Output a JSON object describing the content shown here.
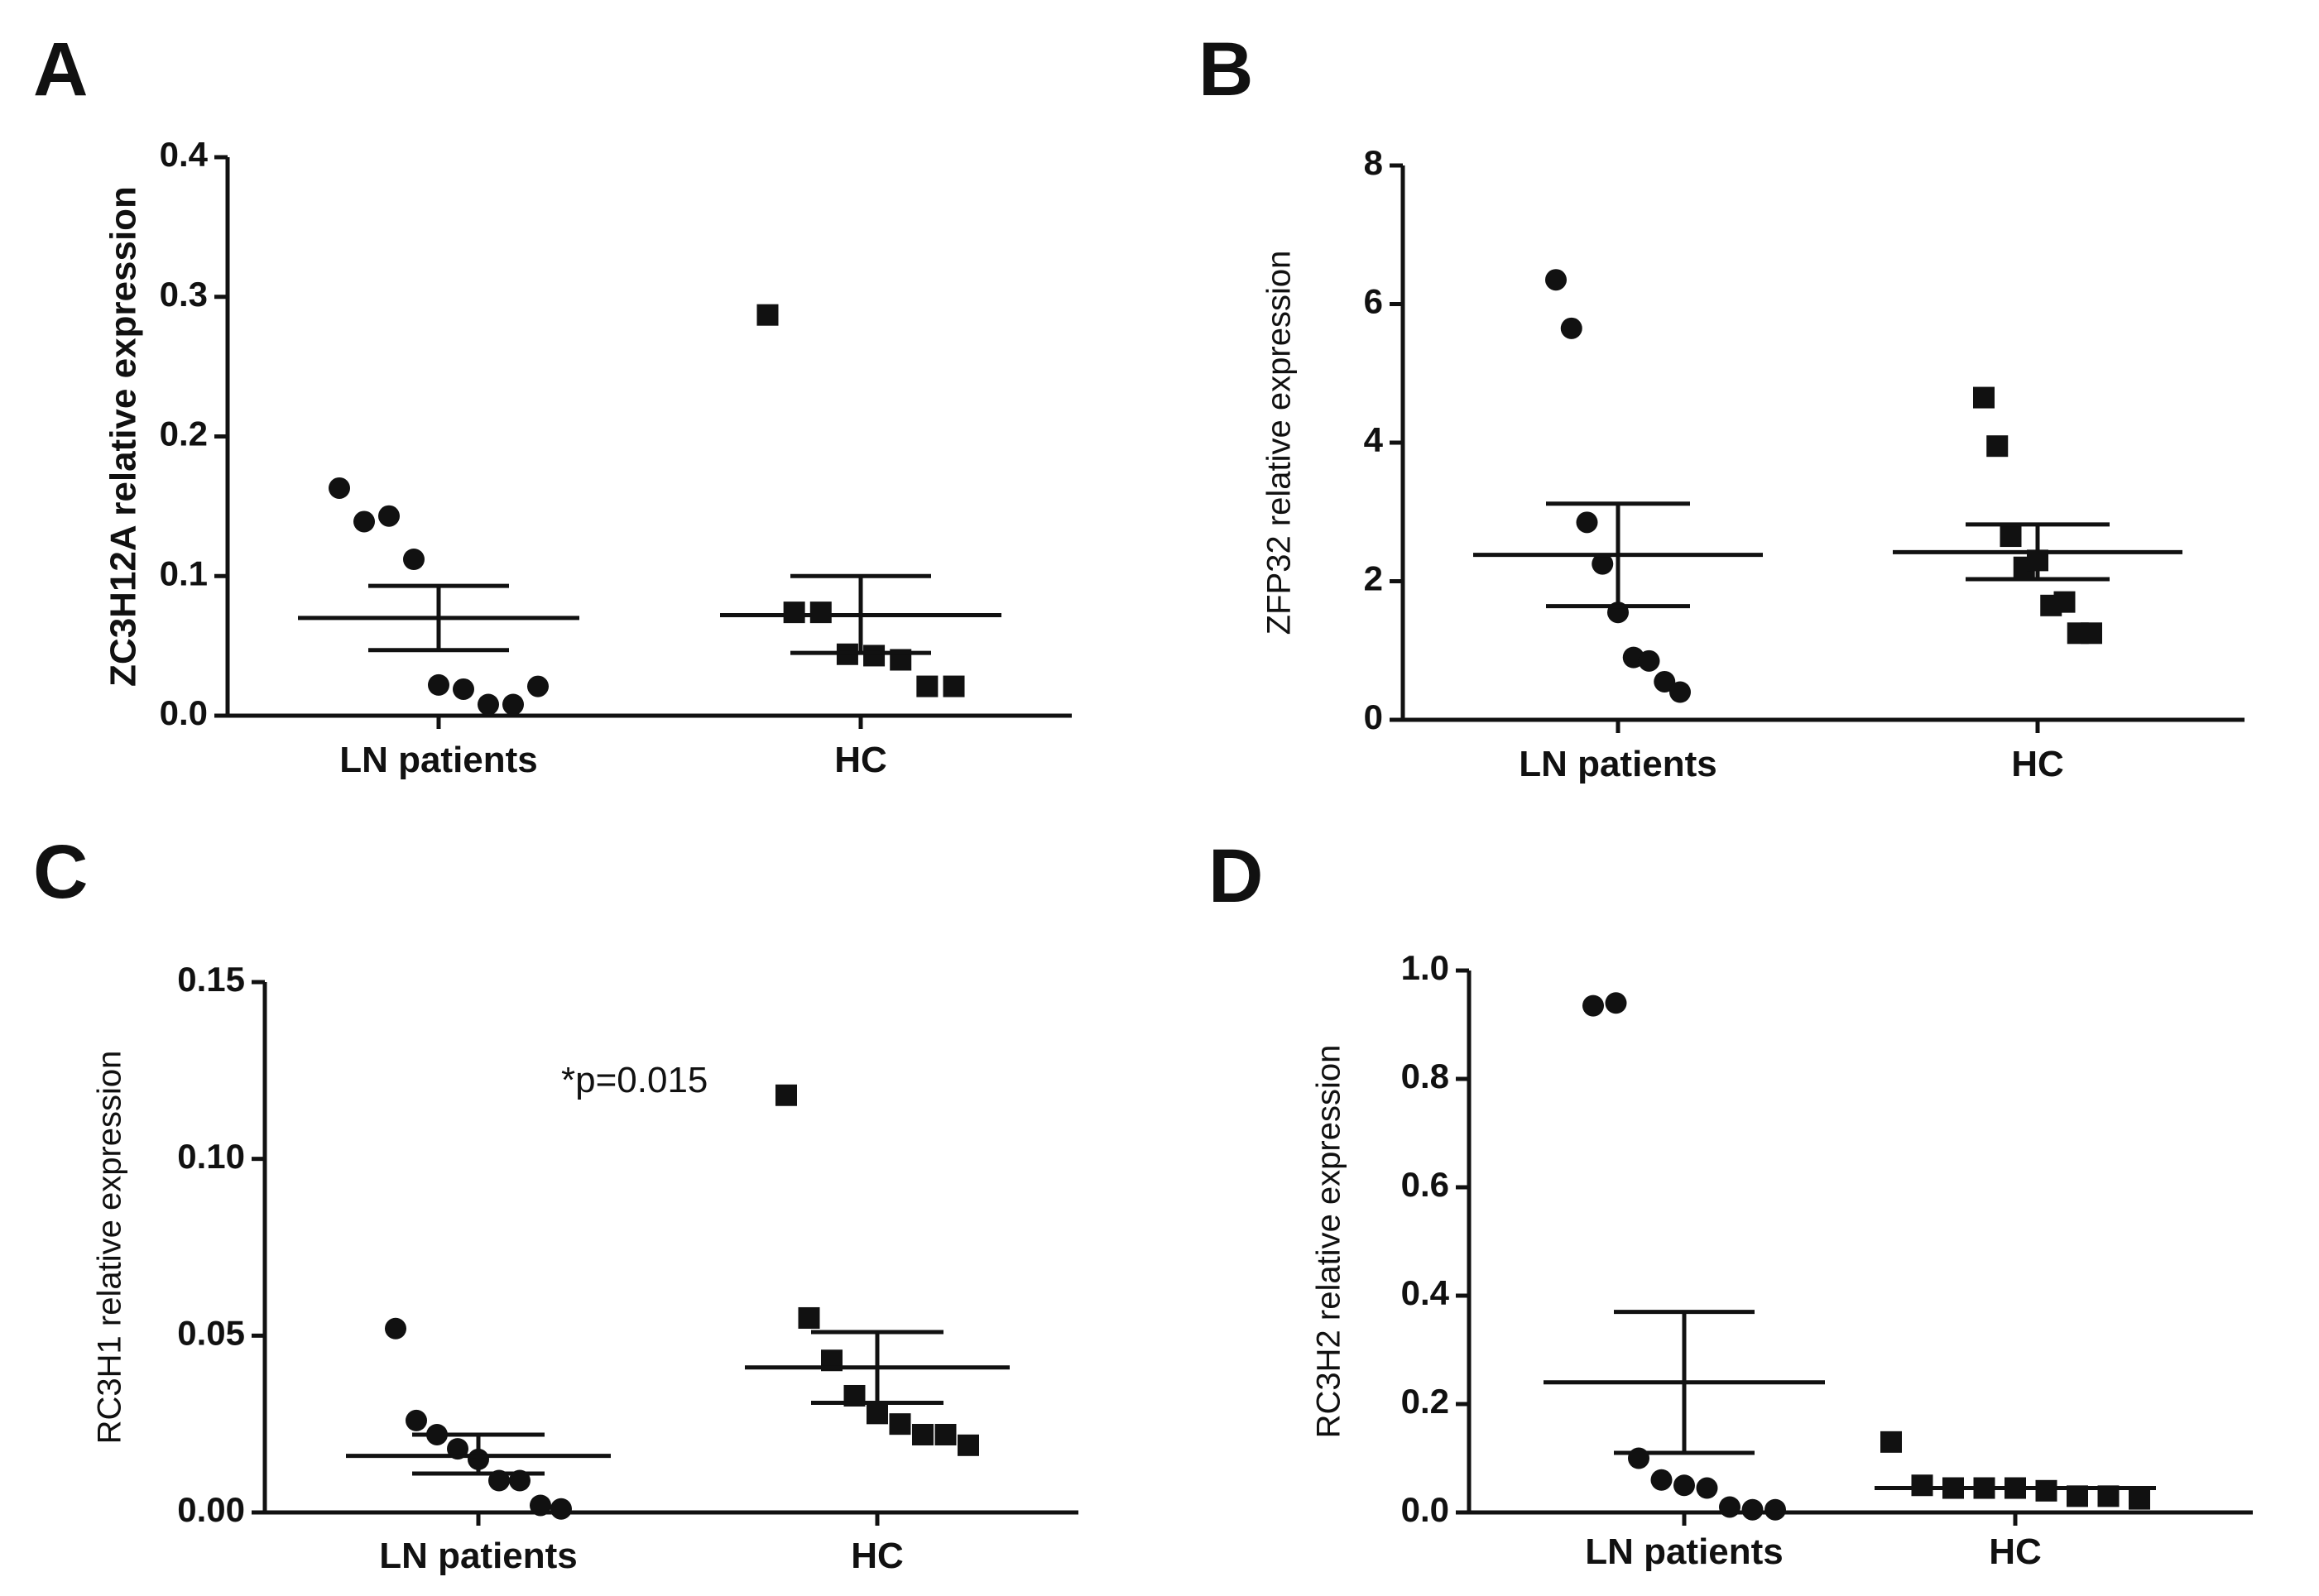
{
  "figure": {
    "background": "#ffffff",
    "ink": "#111111"
  },
  "chart_data": [
    {
      "panel": "A",
      "type": "scatter",
      "ylabel": "ZC3H12A relative expression",
      "ylim": [
        0,
        0.4
      ],
      "yticks": [
        0.0,
        0.1,
        0.2,
        0.3,
        0.4
      ],
      "ytick_labels": [
        "0.0",
        "0.1",
        "0.2",
        "0.3",
        "0.4"
      ],
      "categories": [
        "LN patients",
        "HC"
      ],
      "annotation": "",
      "series": [
        {
          "category": "LN patients",
          "marker": "circle",
          "points": [
            0.163,
            0.139,
            0.143,
            0.112,
            0.022,
            0.019,
            0.008,
            0.008,
            0.021
          ],
          "mean": 0.07,
          "sem_upper": 0.093,
          "sem_lower": 0.047
        },
        {
          "category": "HC",
          "marker": "square",
          "points": [
            0.287,
            0.074,
            0.074,
            0.044,
            0.043,
            0.04,
            0.021,
            0.021
          ],
          "mean": 0.072,
          "sem_upper": 0.1,
          "sem_lower": 0.045
        }
      ]
    },
    {
      "panel": "B",
      "type": "scatter",
      "ylabel": "ZFP32 relative expression",
      "ylim": [
        0,
        8
      ],
      "yticks": [
        0,
        2,
        4,
        6,
        8
      ],
      "ytick_labels": [
        "0",
        "2",
        "4",
        "6",
        "8"
      ],
      "categories": [
        "LN patients",
        "HC"
      ],
      "annotation": "",
      "series": [
        {
          "category": "LN patients",
          "marker": "circle",
          "points": [
            6.35,
            5.65,
            2.85,
            2.25,
            1.55,
            0.9,
            0.85,
            0.55,
            0.4
          ],
          "mean": 2.38,
          "sem_upper": 3.12,
          "sem_lower": 1.64
        },
        {
          "category": "HC",
          "marker": "square",
          "points": [
            4.65,
            3.95,
            2.65,
            2.2,
            2.3,
            1.65,
            1.7,
            1.25,
            1.25
          ],
          "mean": 2.42,
          "sem_upper": 2.82,
          "sem_lower": 2.03
        }
      ]
    },
    {
      "panel": "C",
      "type": "scatter",
      "ylabel": "RC3H1 relative expression",
      "ylim": [
        0,
        0.15
      ],
      "yticks": [
        0.0,
        0.05,
        0.1,
        0.15
      ],
      "ytick_labels": [
        "0.00",
        "0.05",
        "0.10",
        "0.15"
      ],
      "categories": [
        "LN patients",
        "HC"
      ],
      "annotation": "*p=0.015",
      "series": [
        {
          "category": "LN patients",
          "marker": "circle",
          "points": [
            0.052,
            0.026,
            0.022,
            0.018,
            0.015,
            0.009,
            0.009,
            0.002,
            0.001
          ],
          "mean": 0.016,
          "sem_upper": 0.022,
          "sem_lower": 0.011
        },
        {
          "category": "HC",
          "marker": "square",
          "points": [
            0.118,
            0.055,
            0.043,
            0.033,
            0.028,
            0.025,
            0.022,
            0.022,
            0.019
          ],
          "mean": 0.041,
          "sem_upper": 0.051,
          "sem_lower": 0.031
        }
      ]
    },
    {
      "panel": "D",
      "type": "scatter",
      "ylabel": "RC3H2 relative expression",
      "ylim": [
        0,
        1.0
      ],
      "yticks": [
        0.0,
        0.2,
        0.4,
        0.6,
        0.8,
        1.0
      ],
      "ytick_labels": [
        "0.0",
        "0.2",
        "0.4",
        "0.6",
        "0.8",
        "1.0"
      ],
      "categories": [
        "LN patients",
        "HC"
      ],
      "annotation": "",
      "series": [
        {
          "category": "LN patients",
          "marker": "circle",
          "points": [
            0.935,
            0.94,
            0.1,
            0.06,
            0.05,
            0.045,
            0.01,
            0.005,
            0.005
          ],
          "mean": 0.24,
          "sem_upper": 0.37,
          "sem_lower": 0.11
        },
        {
          "category": "HC",
          "marker": "square",
          "points": [
            0.13,
            0.05,
            0.045,
            0.045,
            0.045,
            0.04,
            0.03,
            0.03,
            0.025
          ],
          "mean": 0.045,
          "sem_upper": 0.045,
          "sem_lower": 0.045
        }
      ]
    }
  ]
}
